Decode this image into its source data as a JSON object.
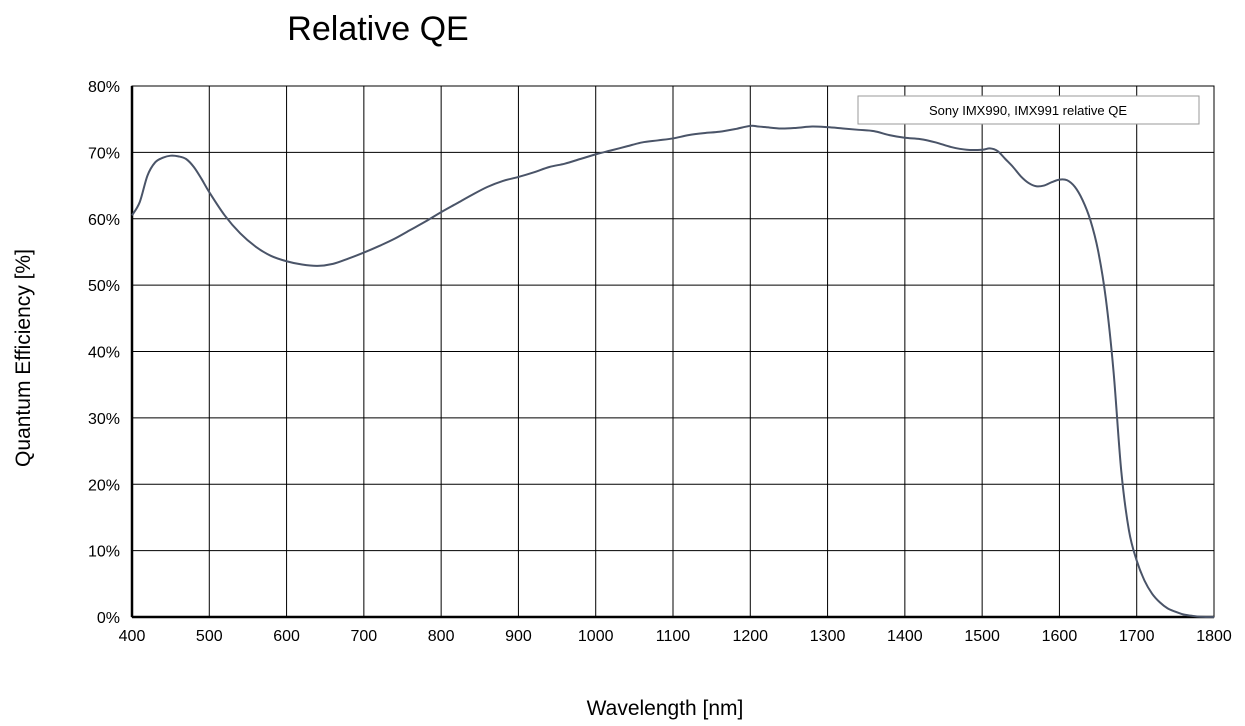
{
  "chart_data": {
    "type": "line",
    "title": "Relative QE",
    "xlabel": "Wavelength [nm]",
    "ylabel": "Quantum Efficiency [%]",
    "xlim": [
      400,
      1800
    ],
    "ylim": [
      0,
      80
    ],
    "x_ticks": [
      "400",
      "500",
      "600",
      "700",
      "800",
      "900",
      "1000",
      "1100",
      "1200",
      "1300",
      "1400",
      "1500",
      "1600",
      "1700",
      "1800"
    ],
    "y_ticks": [
      "0%",
      "10%",
      "20%",
      "30%",
      "40%",
      "50%",
      "60%",
      "70%",
      "80%"
    ],
    "grid": true,
    "legend_position": "top-right",
    "series": [
      {
        "name": "Sony IMX990, IMX991 relative QE",
        "color": "#4a5468",
        "x": [
          400,
          410,
          420,
          430,
          440,
          450,
          460,
          470,
          480,
          490,
          500,
          520,
          540,
          560,
          580,
          600,
          620,
          640,
          660,
          680,
          700,
          720,
          740,
          760,
          780,
          800,
          820,
          840,
          860,
          880,
          900,
          920,
          940,
          960,
          980,
          1000,
          1020,
          1040,
          1060,
          1080,
          1100,
          1120,
          1140,
          1160,
          1180,
          1200,
          1210,
          1220,
          1240,
          1260,
          1280,
          1300,
          1320,
          1340,
          1360,
          1380,
          1400,
          1420,
          1440,
          1460,
          1480,
          1500,
          1510,
          1520,
          1530,
          1540,
          1550,
          1560,
          1570,
          1580,
          1590,
          1600,
          1610,
          1620,
          1630,
          1640,
          1650,
          1660,
          1670,
          1680,
          1690,
          1700,
          1710,
          1720,
          1730,
          1740,
          1750,
          1760,
          1770,
          1780,
          1790,
          1800
        ],
        "y": [
          60.5,
          62.5,
          66.5,
          68.5,
          69.2,
          69.5,
          69.4,
          69.0,
          67.8,
          66.0,
          64.0,
          60.5,
          57.8,
          55.8,
          54.4,
          53.6,
          53.1,
          52.9,
          53.2,
          54.0,
          54.9,
          55.9,
          57.0,
          58.3,
          59.6,
          61.0,
          62.3,
          63.6,
          64.8,
          65.7,
          66.3,
          67.0,
          67.8,
          68.3,
          69.0,
          69.7,
          70.3,
          70.9,
          71.5,
          71.8,
          72.1,
          72.6,
          72.9,
          73.1,
          73.5,
          74.0,
          73.9,
          73.8,
          73.6,
          73.7,
          73.9,
          73.8,
          73.6,
          73.4,
          73.2,
          72.6,
          72.2,
          72.0,
          71.5,
          70.8,
          70.4,
          70.4,
          70.6,
          70.2,
          69.0,
          67.8,
          66.4,
          65.4,
          64.9,
          65.0,
          65.5,
          65.9,
          65.8,
          64.8,
          62.8,
          59.8,
          55.2,
          48.0,
          37.0,
          22.0,
          13.0,
          8.5,
          5.5,
          3.5,
          2.2,
          1.3,
          0.8,
          0.4,
          0.2,
          0.05,
          0.0,
          0.0
        ]
      }
    ]
  }
}
